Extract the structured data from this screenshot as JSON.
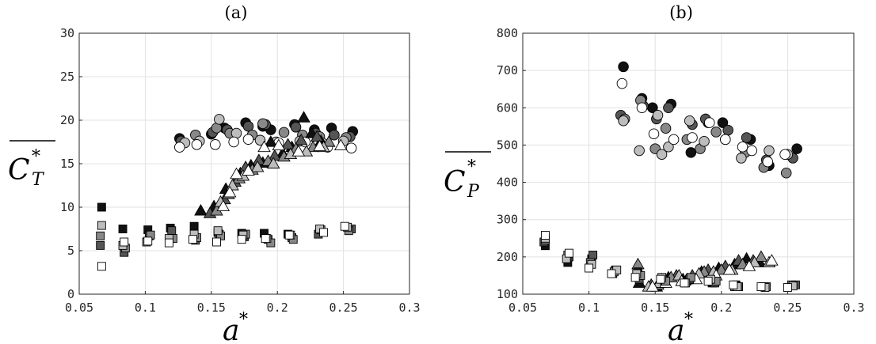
{
  "colors": {
    "black": "#111111",
    "dark": "#555555",
    "mid": "#888888",
    "light": "#bdbdbd",
    "white": "#ffffff"
  },
  "chart_data": [
    {
      "type": "scatter",
      "title": "(a)",
      "xlabel": "a",
      "xlabel_sup": "*",
      "ylabel": "C",
      "ylabel_sup": "*",
      "ylabel_sub": "T",
      "ylabel_overline": true,
      "xlim": [
        0.05,
        0.3
      ],
      "ylim": [
        0,
        30
      ],
      "xticks": [
        "0.05",
        "0.1",
        "0.15",
        "0.2",
        "0.25",
        "0.3"
      ],
      "yticks": [
        "0",
        "5",
        "10",
        "15",
        "20",
        "25",
        "30"
      ],
      "grid": true,
      "series": [
        {
          "marker": "circle",
          "color": "black",
          "x": [
            0.126,
            0.15,
            0.16,
            0.176,
            0.189,
            0.195,
            0.213,
            0.228,
            0.241,
            0.257
          ],
          "y": [
            17.9,
            18.4,
            19.1,
            19.7,
            19.3,
            18.9,
            19.5,
            18.9,
            19.1,
            18.7
          ]
        },
        {
          "marker": "circle",
          "color": "dark",
          "x": [
            0.127,
            0.151,
            0.162,
            0.178,
            0.191,
            0.214,
            0.229,
            0.243,
            0.255
          ],
          "y": [
            17.6,
            18.6,
            18.9,
            19.3,
            19.5,
            19.2,
            18.5,
            18.3,
            18.1
          ]
        },
        {
          "marker": "circle",
          "color": "mid",
          "x": [
            0.138,
            0.154,
            0.164,
            0.181,
            0.189,
            0.205,
            0.219,
            0.232,
            0.252
          ],
          "y": [
            18.3,
            19.1,
            18.5,
            18.3,
            19.6,
            18.6,
            18.3,
            18.1,
            18.0
          ]
        },
        {
          "marker": "circle",
          "color": "light",
          "x": [
            0.13,
            0.141,
            0.156,
            0.169,
            0.187,
            0.199,
            0.217,
            0.234,
            0.25
          ],
          "y": [
            17.4,
            17.6,
            20.1,
            18.5,
            17.7,
            17.5,
            17.6,
            17.4,
            17.6
          ]
        },
        {
          "marker": "circle",
          "color": "white",
          "x": [
            0.126,
            0.139,
            0.153,
            0.167,
            0.178,
            0.201,
            0.221,
            0.238,
            0.256
          ],
          "y": [
            16.9,
            17.2,
            17.2,
            17.5,
            17.8,
            17.4,
            17.5,
            16.9,
            16.8
          ]
        },
        {
          "marker": "triangle",
          "color": "black",
          "x": [
            0.142,
            0.152,
            0.161,
            0.172,
            0.18,
            0.189,
            0.195,
            0.204,
            0.211,
            0.22,
            0.226,
            0.233
          ],
          "y": [
            9.6,
            10.1,
            12.1,
            13.9,
            14.8,
            15.1,
            17.5,
            16.2,
            16.9,
            20.3,
            18.5,
            17.6
          ]
        },
        {
          "marker": "triangle",
          "color": "dark",
          "x": [
            0.149,
            0.16,
            0.168,
            0.176,
            0.186,
            0.198,
            0.208,
            0.218,
            0.23
          ],
          "y": [
            9.3,
            10.9,
            12.9,
            14.6,
            15.4,
            15.9,
            17.2,
            17.7,
            18.1
          ]
        },
        {
          "marker": "triangle",
          "color": "mid",
          "x": [
            0.154,
            0.163,
            0.171,
            0.181,
            0.193,
            0.205,
            0.214,
            0.227,
            0.239
          ],
          "y": [
            9.6,
            11.5,
            13.3,
            14.3,
            15.3,
            15.8,
            16.7,
            16.9,
            17.5
          ]
        },
        {
          "marker": "triangle",
          "color": "light",
          "x": [
            0.157,
            0.166,
            0.174,
            0.185,
            0.197,
            0.21,
            0.222,
            0.235
          ],
          "y": [
            10.6,
            12.5,
            13.6,
            14.6,
            15.0,
            16.1,
            16.4,
            16.9
          ]
        },
        {
          "marker": "triangle",
          "color": "white",
          "x": [
            0.159,
            0.164,
            0.169,
            0.178,
            0.19,
            0.201,
            0.216,
            0.232,
            0.248
          ],
          "y": [
            10.1,
            11.7,
            13.8,
            14.2,
            16.9,
            17.1,
            16.4,
            17.0,
            17.1
          ]
        },
        {
          "marker": "square",
          "color": "black",
          "x": [
            0.067,
            0.083,
            0.102,
            0.119,
            0.137,
            0.155,
            0.173,
            0.19,
            0.208
          ],
          "y": [
            10.0,
            7.5,
            7.4,
            7.6,
            7.8,
            7.1,
            7.0,
            7.0,
            6.9
          ]
        },
        {
          "marker": "square",
          "color": "dark",
          "x": [
            0.066,
            0.084,
            0.103,
            0.12,
            0.138,
            0.156,
            0.175,
            0.193,
            0.211,
            0.231,
            0.256
          ],
          "y": [
            5.6,
            4.8,
            6.7,
            7.3,
            6.2,
            6.9,
            6.6,
            6.3,
            6.5,
            6.9,
            7.5
          ]
        },
        {
          "marker": "square",
          "color": "mid",
          "x": [
            0.066,
            0.085,
            0.104,
            0.121,
            0.139,
            0.157,
            0.176,
            0.195,
            0.212,
            0.233,
            0.254
          ],
          "y": [
            6.7,
            5.3,
            6.8,
            6.4,
            6.5,
            6.7,
            6.9,
            5.9,
            6.3,
            7.4,
            7.3
          ]
        },
        {
          "marker": "square",
          "color": "light",
          "x": [
            0.067,
            0.083,
            0.101,
            0.118,
            0.137,
            0.155,
            0.174,
            0.192,
            0.21,
            0.232,
            0.253
          ],
          "y": [
            7.9,
            5.6,
            6.0,
            6.4,
            6.9,
            7.3,
            6.8,
            6.4,
            6.8,
            7.5,
            7.7
          ]
        },
        {
          "marker": "square",
          "color": "white",
          "x": [
            0.067,
            0.084,
            0.102,
            0.118,
            0.136,
            0.154,
            0.173,
            0.191,
            0.209,
            0.235,
            0.251
          ],
          "y": [
            3.2,
            6.0,
            6.1,
            5.9,
            6.3,
            6.0,
            6.3,
            6.4,
            6.8,
            7.1,
            7.8
          ]
        }
      ]
    },
    {
      "type": "scatter",
      "title": "(b)",
      "xlabel": "a",
      "xlabel_sup": "*",
      "ylabel": "C",
      "ylabel_sup": "*",
      "ylabel_sub": "P",
      "ylabel_overline": true,
      "xlim": [
        0.05,
        0.3
      ],
      "ylim": [
        100,
        800
      ],
      "xticks": [
        "0.05",
        "0.1",
        "0.15",
        "0.2",
        "0.25",
        "0.3"
      ],
      "yticks": [
        "100",
        "200",
        "300",
        "400",
        "500",
        "600",
        "700",
        "800"
      ],
      "grid": true,
      "series": [
        {
          "marker": "circle",
          "color": "black",
          "x": [
            0.126,
            0.14,
            0.148,
            0.162,
            0.177,
            0.19,
            0.201,
            0.222,
            0.236,
            0.257
          ],
          "y": [
            710,
            625,
            600,
            610,
            480,
            560,
            560,
            515,
            445,
            490
          ]
        },
        {
          "marker": "circle",
          "color": "dark",
          "x": [
            0.124,
            0.141,
            0.151,
            0.16,
            0.178,
            0.188,
            0.205,
            0.219,
            0.234,
            0.254
          ],
          "y": [
            580,
            605,
            570,
            600,
            555,
            570,
            540,
            520,
            460,
            465
          ]
        },
        {
          "marker": "circle",
          "color": "mid",
          "x": [
            0.127,
            0.139,
            0.15,
            0.158,
            0.174,
            0.184,
            0.196,
            0.218,
            0.232,
            0.249
          ],
          "y": [
            570,
            620,
            490,
            545,
            515,
            490,
            535,
            480,
            440,
            425
          ]
        },
        {
          "marker": "circle",
          "color": "light",
          "x": [
            0.126,
            0.138,
            0.152,
            0.155,
            0.16,
            0.176,
            0.187,
            0.203,
            0.215,
            0.236,
            0.25
          ],
          "y": [
            565,
            485,
            580,
            475,
            495,
            565,
            510,
            515,
            465,
            485,
            475
          ]
        },
        {
          "marker": "circle",
          "color": "white",
          "x": [
            0.125,
            0.14,
            0.149,
            0.164,
            0.178,
            0.191,
            0.203,
            0.216,
            0.223,
            0.235,
            0.248
          ],
          "y": [
            665,
            600,
            530,
            515,
            520,
            560,
            515,
            495,
            485,
            455,
            475
          ]
        },
        {
          "marker": "triangle",
          "color": "black",
          "x": [
            0.138,
            0.151,
            0.16,
            0.171,
            0.185,
            0.198,
            0.21,
            0.219,
            0.229
          ],
          "y": [
            130,
            120,
            145,
            140,
            160,
            170,
            180,
            195,
            185
          ]
        },
        {
          "marker": "triangle",
          "color": "dark",
          "x": [
            0.147,
            0.155,
            0.166,
            0.178,
            0.19,
            0.203,
            0.213,
            0.224
          ],
          "y": [
            125,
            140,
            150,
            150,
            165,
            175,
            190,
            190
          ]
        },
        {
          "marker": "triangle",
          "color": "mid",
          "x": [
            0.137,
            0.152,
            0.162,
            0.174,
            0.187,
            0.2,
            0.216,
            0.23
          ],
          "y": [
            180,
            125,
            145,
            140,
            160,
            165,
            180,
            200
          ]
        },
        {
          "marker": "triangle",
          "color": "light",
          "x": [
            0.145,
            0.153,
            0.168,
            0.183,
            0.194,
            0.208,
            0.225,
            0.236
          ],
          "y": [
            120,
            130,
            150,
            155,
            160,
            165,
            185,
            185
          ]
        },
        {
          "marker": "triangle",
          "color": "white",
          "x": [
            0.148,
            0.158,
            0.17,
            0.181,
            0.196,
            0.206,
            0.221,
            0.238
          ],
          "y": [
            120,
            130,
            135,
            140,
            150,
            165,
            175,
            190
          ]
        },
        {
          "marker": "square",
          "color": "black",
          "x": [
            0.067,
            0.084,
            0.102,
            0.12,
            0.137,
            0.156,
            0.174,
            0.193,
            0.211
          ],
          "y": [
            230,
            185,
            195,
            165,
            160,
            140,
            135,
            130,
            125
          ]
        },
        {
          "marker": "square",
          "color": "dark",
          "x": [
            0.066,
            0.085,
            0.103,
            0.118,
            0.138,
            0.157,
            0.176,
            0.195,
            0.213,
            0.232,
            0.256
          ],
          "y": [
            240,
            200,
            205,
            155,
            140,
            135,
            140,
            130,
            120,
            120,
            125
          ]
        },
        {
          "marker": "square",
          "color": "mid",
          "x": [
            0.067,
            0.084,
            0.101,
            0.119,
            0.139,
            0.158,
            0.177,
            0.196,
            0.21,
            0.234,
            0.253
          ],
          "y": [
            245,
            205,
            185,
            160,
            150,
            135,
            145,
            135,
            120,
            120,
            125
          ]
        },
        {
          "marker": "square",
          "color": "light",
          "x": [
            0.067,
            0.083,
            0.102,
            0.121,
            0.136,
            0.155,
            0.173,
            0.192,
            0.212,
            0.233,
            0.254
          ],
          "y": [
            250,
            195,
            180,
            165,
            155,
            145,
            130,
            140,
            120,
            118,
            122
          ]
        },
        {
          "marker": "square",
          "color": "white",
          "x": [
            0.067,
            0.085,
            0.1,
            0.117,
            0.135,
            0.154,
            0.172,
            0.19,
            0.209,
            0.23,
            0.25
          ],
          "y": [
            258,
            210,
            170,
            155,
            145,
            140,
            130,
            135,
            125,
            120,
            118
          ]
        }
      ]
    }
  ]
}
